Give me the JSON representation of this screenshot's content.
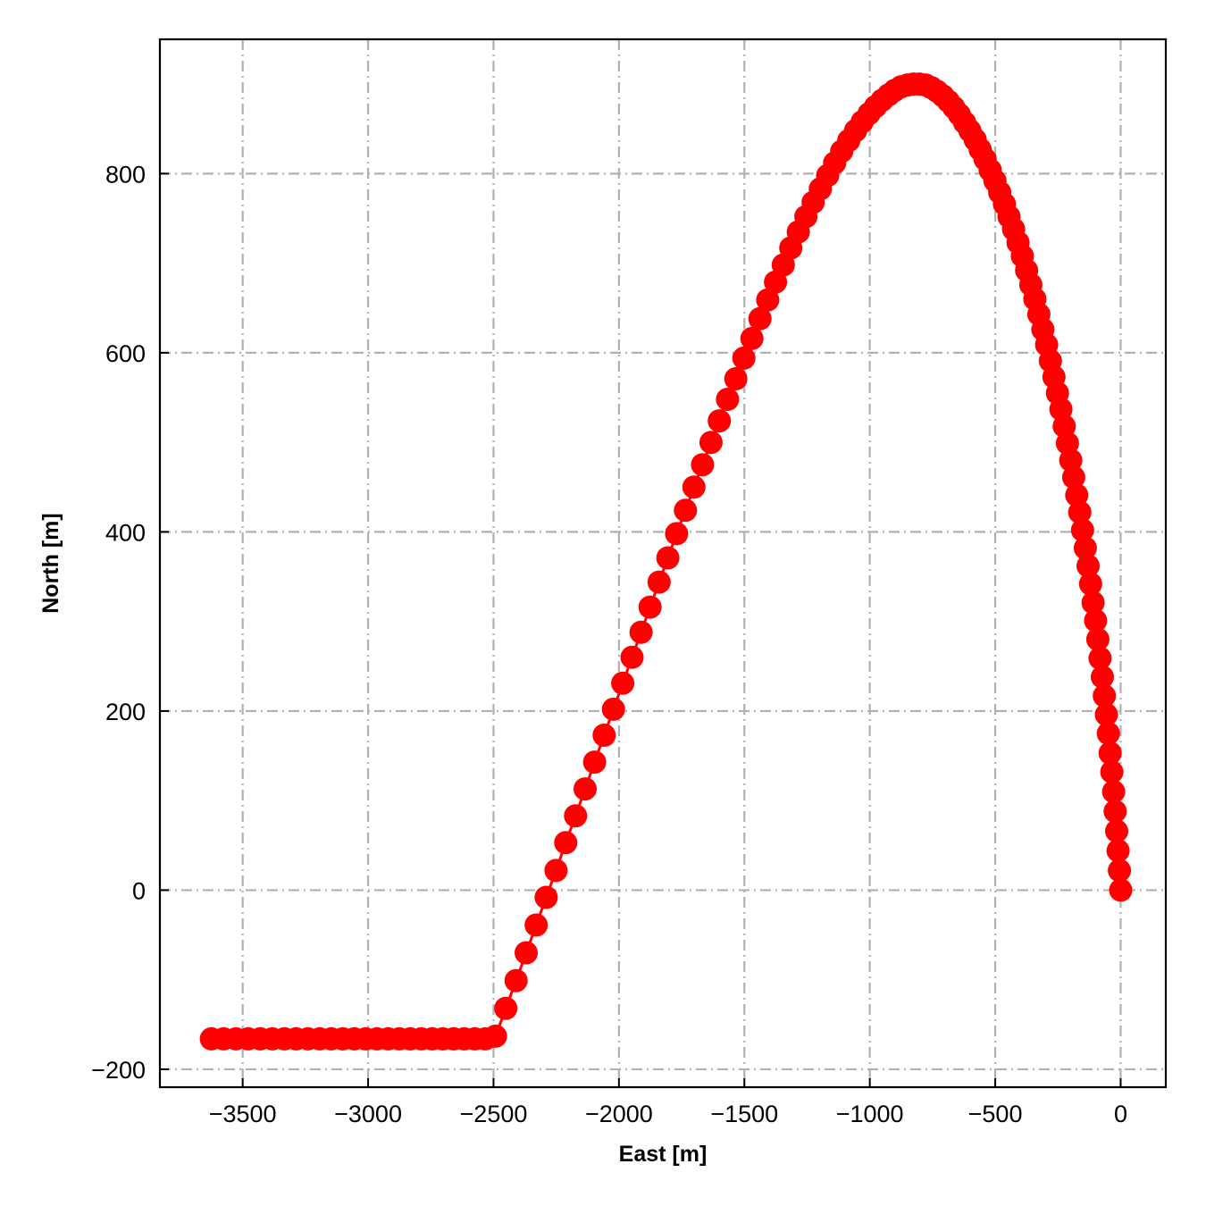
{
  "chart_data": {
    "type": "scatter",
    "title": "",
    "xlabel": "East [m]",
    "ylabel": "North [m]",
    "xlim": [
      -3830,
      180
    ],
    "ylim": [
      -220,
      950
    ],
    "x_ticks": [
      -3500,
      -3000,
      -2500,
      -2000,
      -1500,
      -1000,
      -500,
      0
    ],
    "y_ticks": [
      -200,
      0,
      200,
      400,
      600,
      800
    ],
    "x_tick_labels": [
      "−3500",
      "−3000",
      "−2500",
      "−2000",
      "−1500",
      "−1000",
      "−500",
      "0"
    ],
    "y_tick_labels": [
      "−200",
      "0",
      "200",
      "400",
      "600",
      "800"
    ],
    "grid": true,
    "grid_style": "dash-dot",
    "legend": "none",
    "colors": {
      "series": "#ff0000",
      "grid": "#b0b0b0",
      "axes": "#000000"
    },
    "series": [
      {
        "marker": "circle",
        "line": true,
        "x": [
          0,
          -5,
          -10,
          -16,
          -22,
          -28,
          -35,
          -42,
          -49,
          -57,
          -65,
          -73,
          -82,
          -91,
          -100,
          -110,
          -120,
          -130,
          -141,
          -152,
          -163,
          -175,
          -187,
          -199,
          -212,
          -225,
          -238,
          -252,
          -266,
          -280,
          -295,
          -310,
          -326,
          -342,
          -358,
          -375,
          -392,
          -409,
          -427,
          -445,
          -463,
          -482,
          -501,
          -520,
          -540,
          -560,
          -580,
          -601,
          -622,
          -643,
          -665,
          -687,
          -709,
          -732,
          -755,
          -778,
          -802,
          -826,
          -850,
          -875,
          -900,
          -925,
          -951,
          -977,
          -1003,
          -1030,
          -1057,
          -1084,
          -1112,
          -1140,
          -1168,
          -1197,
          -1226,
          -1255,
          -1285,
          -1315,
          -1345,
          -1376,
          -1407,
          -1438,
          -1470,
          -1502,
          -1534,
          -1567,
          -1600,
          -1633,
          -1667,
          -1701,
          -1735,
          -1770,
          -1805,
          -1840,
          -1876,
          -1912,
          -1948,
          -1985,
          -2022,
          -2059,
          -2097,
          -2135,
          -2173,
          -2212,
          -2251,
          -2290,
          -2330,
          -2370,
          -2410,
          -2451,
          -2492,
          -2533,
          -2575,
          -2617,
          -2659,
          -2702,
          -2745,
          -2788,
          -2832,
          -2876,
          -2920,
          -2965,
          -3010,
          -3055,
          -3101,
          -3147,
          -3193,
          -3240,
          -3287,
          -3334,
          -3382,
          -3430,
          -3478,
          -3527,
          -3576,
          -3625
        ],
        "y": [
          0,
          22,
          44,
          66,
          88,
          110,
          132,
          153,
          175,
          196,
          217,
          238,
          259,
          280,
          301,
          321,
          342,
          362,
          382,
          402,
          422,
          441,
          461,
          480,
          499,
          518,
          537,
          555,
          573,
          591,
          609,
          626,
          643,
          660,
          676,
          692,
          708,
          723,
          738,
          752,
          766,
          779,
          792,
          804,
          816,
          827,
          838,
          848,
          857,
          866,
          874,
          881,
          887,
          892,
          896,
          899,
          900,
          900,
          899,
          897,
          893,
          888,
          882,
          875,
          867,
          858,
          848,
          837,
          825,
          812,
          798,
          783,
          768,
          752,
          735,
          717,
          698,
          679,
          659,
          638,
          616,
          594,
          571,
          548,
          524,
          500,
          475,
          450,
          424,
          398,
          371,
          344,
          316,
          288,
          260,
          231,
          202,
          173,
          143,
          113,
          83,
          53,
          22,
          -8,
          -39,
          -70,
          -101,
          -132,
          -163,
          -166,
          -166,
          -166,
          -166,
          -166,
          -166,
          -166,
          -166,
          -166,
          -166,
          -166,
          -166,
          -166,
          -166,
          -166,
          -166,
          -166,
          -166,
          -166,
          -166,
          -166,
          -166,
          -166,
          -166,
          -166
        ]
      }
    ]
  }
}
